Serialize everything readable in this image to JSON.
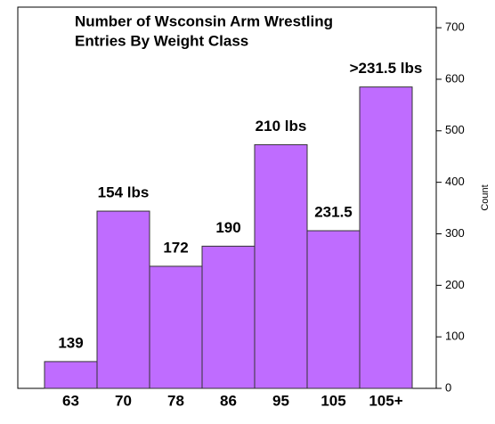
{
  "chart_data": {
    "type": "bar",
    "title": [
      "Number of Wsconsin Arm Wrestling",
      "Entries By Weight Class"
    ],
    "y_label": "Count",
    "categories": [
      "63",
      "70",
      "78",
      "86",
      "95",
      "105",
      "105+"
    ],
    "values": [
      52,
      344,
      237,
      276,
      473,
      306,
      585
    ],
    "annotations": [
      "139",
      "154 lbs",
      "172",
      "190",
      "210 lbs",
      "231.5",
      ">231.5 lbs"
    ],
    "color": "#bf6cff",
    "ylim": [
      0,
      740
    ],
    "yticks": [
      0,
      100,
      200,
      300,
      400,
      500,
      600,
      700
    ]
  }
}
